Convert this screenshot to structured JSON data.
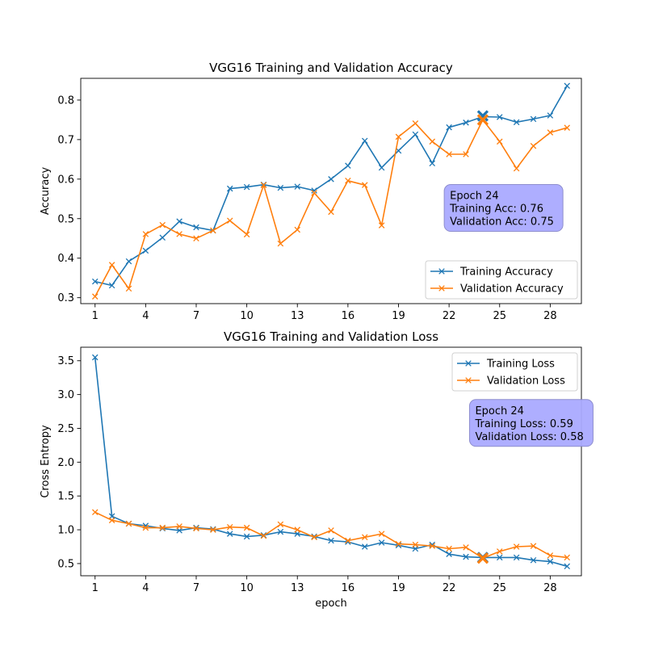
{
  "colors": {
    "training": "#1f77b4",
    "validation": "#ff7f0e",
    "annotation_fill": "#aaaaff",
    "annotation_edge": "#8888cc"
  },
  "chart_data": [
    {
      "type": "line",
      "title": "VGG16 Training and Validation Accuracy",
      "xlabel": "",
      "ylabel": "Accuracy",
      "xlim": [
        0.15,
        29.85
      ],
      "ylim": [
        0.285,
        0.855
      ],
      "xticks": [
        1,
        4,
        7,
        10,
        13,
        16,
        19,
        22,
        25,
        28
      ],
      "yticks": [
        0.3,
        0.4,
        0.5,
        0.6,
        0.7,
        0.8
      ],
      "ytick_labels": [
        "0.3",
        "0.4",
        "0.5",
        "0.6",
        "0.7",
        "0.8"
      ],
      "x": [
        1,
        2,
        3,
        4,
        5,
        6,
        7,
        8,
        9,
        10,
        11,
        12,
        13,
        14,
        15,
        16,
        17,
        18,
        19,
        20,
        21,
        22,
        23,
        24,
        25,
        26,
        27,
        28,
        29
      ],
      "series": [
        {
          "name": "Training Accuracy",
          "color": "#1f77b4",
          "values": [
            0.341,
            0.331,
            0.392,
            0.419,
            0.452,
            0.493,
            0.478,
            0.47,
            0.576,
            0.58,
            0.586,
            0.578,
            0.581,
            0.571,
            0.6,
            0.634,
            0.697,
            0.629,
            0.672,
            0.713,
            0.64,
            0.731,
            0.743,
            0.758,
            0.757,
            0.744,
            0.752,
            0.761,
            0.836
          ]
        },
        {
          "name": "Validation Accuracy",
          "color": "#ff7f0e",
          "values": [
            0.303,
            0.383,
            0.323,
            0.461,
            0.484,
            0.461,
            0.45,
            0.47,
            0.495,
            0.46,
            0.585,
            0.437,
            0.472,
            0.565,
            0.517,
            0.596,
            0.585,
            0.483,
            0.707,
            0.741,
            0.695,
            0.663,
            0.663,
            0.75,
            0.695,
            0.627,
            0.684,
            0.718,
            0.73
          ]
        }
      ],
      "highlight": {
        "epoch": 24,
        "training": 0.76,
        "validation": 0.75
      },
      "legend": "lower-right",
      "annotation": {
        "lines": [
          "Epoch 24",
          "Training Acc: 0.76",
          "Validation Acc: 0.75"
        ],
        "anchor": [
          22,
          0.527
        ]
      }
    },
    {
      "type": "line",
      "title": "VGG16 Training and Validation Loss",
      "xlabel": "epoch",
      "ylabel": "Cross Entropy",
      "xlim": [
        0.15,
        29.85
      ],
      "ylim": [
        0.32,
        3.7
      ],
      "xticks": [
        1,
        4,
        7,
        10,
        13,
        16,
        19,
        22,
        25,
        28
      ],
      "yticks": [
        0.5,
        1.0,
        1.5,
        2.0,
        2.5,
        3.0,
        3.5
      ],
      "ytick_labels": [
        "0.5",
        "1.0",
        "1.5",
        "2.0",
        "2.5",
        "3.0",
        "3.5"
      ],
      "x": [
        1,
        2,
        3,
        4,
        5,
        6,
        7,
        8,
        9,
        10,
        11,
        12,
        13,
        14,
        15,
        16,
        17,
        18,
        19,
        20,
        21,
        22,
        23,
        24,
        25,
        26,
        27,
        28,
        29
      ],
      "series": [
        {
          "name": "Training Loss",
          "color": "#1f77b4",
          "values": [
            3.55,
            1.2,
            1.09,
            1.06,
            1.02,
            0.99,
            1.03,
            1.01,
            0.94,
            0.9,
            0.92,
            0.97,
            0.94,
            0.9,
            0.84,
            0.82,
            0.75,
            0.81,
            0.77,
            0.72,
            0.78,
            0.64,
            0.6,
            0.59,
            0.59,
            0.59,
            0.55,
            0.53,
            0.46
          ]
        },
        {
          "name": "Validation Loss",
          "color": "#ff7f0e",
          "values": [
            1.26,
            1.14,
            1.09,
            1.03,
            1.03,
            1.05,
            1.02,
            1.0,
            1.04,
            1.03,
            0.91,
            1.08,
            1.0,
            0.89,
            0.99,
            0.84,
            0.89,
            0.94,
            0.79,
            0.78,
            0.76,
            0.72,
            0.74,
            0.58,
            0.68,
            0.75,
            0.76,
            0.62,
            0.59
          ]
        }
      ],
      "highlight": {
        "epoch": 24,
        "training": 0.59,
        "validation": 0.58
      },
      "legend": "upper-right",
      "annotation": {
        "lines": [
          "Epoch 24",
          "Training Loss: 0.59",
          "Validation Loss: 0.58"
        ],
        "anchor": [
          23.5,
          2.58
        ]
      }
    }
  ]
}
